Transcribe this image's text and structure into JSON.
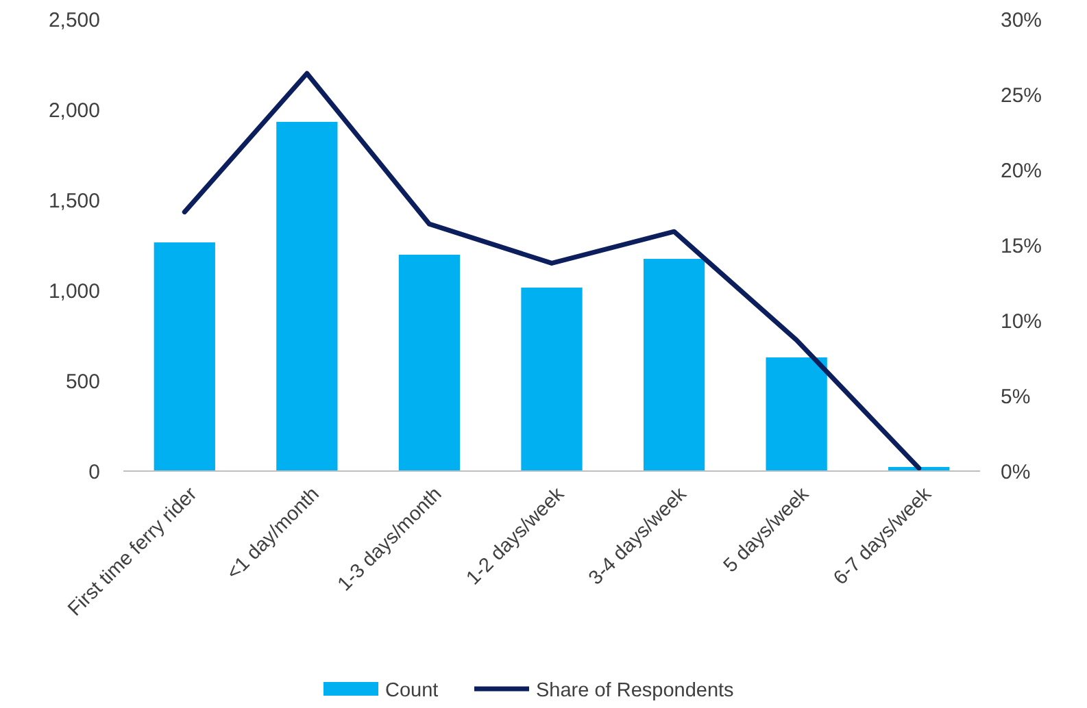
{
  "chart_data": {
    "type": "bar",
    "categories": [
      "First time ferry rider",
      "<1 day/month",
      "1-3 days/month",
      "1-2 days/week",
      "3-4 days/week",
      "5 days/week",
      "6-7 days/week"
    ],
    "series": [
      {
        "name": "Count",
        "color": "#00b0f0",
        "values": [
          1265,
          1932,
          1197,
          1015,
          1174,
          629,
          23
        ]
      },
      {
        "name": "Share of Respondents",
        "type": "line",
        "axis": "y2",
        "color": "#0c1f5c",
        "values": [
          17.2,
          26.4,
          16.4,
          13.8,
          15.9,
          8.7,
          0.2
        ]
      }
    ],
    "ylim": [
      0,
      2500
    ],
    "yticks": [
      0,
      500,
      {
        "value": 1000,
        "label": "1,000"
      },
      {
        "value": 1500,
        "label": "1,500"
      },
      {
        "value": 2000,
        "label": "2,000"
      },
      {
        "value": 2500,
        "label": "2,500"
      }
    ],
    "y2lim": [
      0,
      30
    ],
    "y2ticks": [
      {
        "value": 0,
        "label": "0%"
      },
      {
        "value": 5,
        "label": "5%"
      },
      {
        "value": 10,
        "label": "10%"
      },
      {
        "value": 15,
        "label": "15%"
      },
      {
        "value": 20,
        "label": "20%"
      },
      {
        "value": 25,
        "label": "25%"
      },
      {
        "value": 30,
        "label": "30%"
      }
    ],
    "legend": "bottom",
    "marker": "none"
  }
}
